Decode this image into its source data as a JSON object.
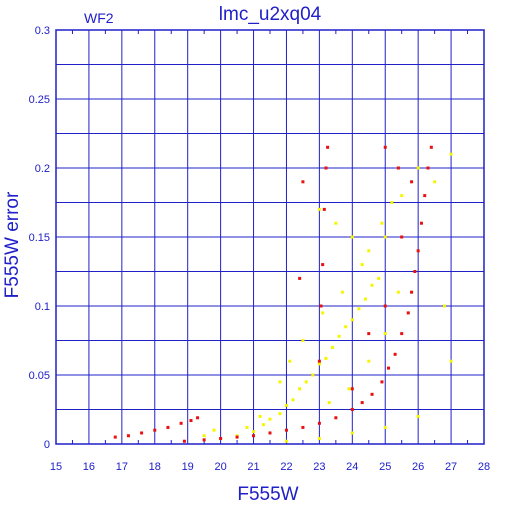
{
  "chart_data": {
    "type": "scatter",
    "title": "lmc_u2xq04",
    "panel_label": "WF2",
    "xlabel": "F555W",
    "ylabel": "F555W error",
    "xlim": [
      15,
      28
    ],
    "ylim": [
      0,
      0.3
    ],
    "x_ticks": [
      "15",
      "16",
      "17",
      "18",
      "19",
      "20",
      "21",
      "22",
      "23",
      "24",
      "25",
      "26",
      "27",
      "28"
    ],
    "y_ticks": [
      "0",
      "0.05",
      "0.1",
      "0.15",
      "0.2",
      "0.25",
      "0.3"
    ],
    "grid": true,
    "colors": {
      "axis": "#2020c8",
      "grid": "#2020c8",
      "series_yellow": "#f5f500",
      "series_red": "#e81010"
    },
    "series": [
      {
        "color": "#f5f500",
        "points": [
          [
            20.0,
            0.004
          ],
          [
            20.5,
            0.006
          ],
          [
            21.0,
            0.009
          ],
          [
            21.3,
            0.014
          ],
          [
            21.5,
            0.018
          ],
          [
            21.8,
            0.022
          ],
          [
            22.0,
            0.028
          ],
          [
            22.2,
            0.032
          ],
          [
            22.4,
            0.04
          ],
          [
            22.6,
            0.045
          ],
          [
            22.8,
            0.05
          ],
          [
            23.0,
            0.058
          ],
          [
            23.2,
            0.062
          ],
          [
            23.4,
            0.07
          ],
          [
            23.6,
            0.078
          ],
          [
            23.8,
            0.085
          ],
          [
            24.0,
            0.09
          ],
          [
            24.2,
            0.098
          ],
          [
            24.4,
            0.105
          ],
          [
            24.6,
            0.115
          ],
          [
            24.8,
            0.12
          ],
          [
            23.0,
            0.17
          ],
          [
            23.5,
            0.16
          ],
          [
            24.0,
            0.15
          ],
          [
            24.5,
            0.14
          ],
          [
            25.0,
            0.15
          ],
          [
            25.5,
            0.18
          ],
          [
            26.0,
            0.2
          ],
          [
            26.5,
            0.19
          ],
          [
            27.0,
            0.21
          ],
          [
            21.8,
            0.045
          ],
          [
            22.5,
            0.075
          ],
          [
            23.1,
            0.095
          ],
          [
            23.7,
            0.11
          ],
          [
            24.3,
            0.13
          ],
          [
            24.9,
            0.16
          ],
          [
            25.2,
            0.175
          ],
          [
            20.8,
            0.012
          ],
          [
            21.2,
            0.02
          ],
          [
            22.1,
            0.06
          ],
          [
            23.3,
            0.03
          ],
          [
            23.9,
            0.04
          ],
          [
            24.5,
            0.06
          ],
          [
            25.0,
            0.08
          ],
          [
            25.4,
            0.11
          ],
          [
            19.5,
            0.006
          ],
          [
            19.8,
            0.01
          ],
          [
            22.0,
            0.002
          ],
          [
            23.0,
            0.004
          ],
          [
            24.0,
            0.008
          ],
          [
            25.0,
            0.012
          ],
          [
            26.0,
            0.02
          ],
          [
            27.0,
            0.06
          ],
          [
            26.8,
            0.1
          ]
        ]
      },
      {
        "color": "#e81010",
        "points": [
          [
            16.8,
            0.005
          ],
          [
            17.2,
            0.006
          ],
          [
            17.6,
            0.008
          ],
          [
            18.0,
            0.01
          ],
          [
            18.4,
            0.012
          ],
          [
            18.8,
            0.015
          ],
          [
            19.1,
            0.017
          ],
          [
            19.3,
            0.019
          ],
          [
            18.9,
            0.002
          ],
          [
            19.5,
            0.003
          ],
          [
            20.0,
            0.004
          ],
          [
            20.5,
            0.005
          ],
          [
            21.0,
            0.006
          ],
          [
            21.5,
            0.008
          ],
          [
            22.0,
            0.01
          ],
          [
            22.5,
            0.012
          ],
          [
            23.0,
            0.015
          ],
          [
            23.5,
            0.019
          ],
          [
            24.0,
            0.025
          ],
          [
            24.3,
            0.03
          ],
          [
            24.6,
            0.036
          ],
          [
            24.9,
            0.045
          ],
          [
            25.1,
            0.055
          ],
          [
            25.3,
            0.065
          ],
          [
            25.5,
            0.08
          ],
          [
            25.7,
            0.095
          ],
          [
            25.8,
            0.11
          ],
          [
            25.9,
            0.125
          ],
          [
            26.0,
            0.14
          ],
          [
            26.1,
            0.16
          ],
          [
            26.2,
            0.18
          ],
          [
            26.3,
            0.2
          ],
          [
            23.0,
            0.06
          ],
          [
            23.05,
            0.1
          ],
          [
            23.1,
            0.13
          ],
          [
            23.15,
            0.17
          ],
          [
            23.2,
            0.2
          ],
          [
            23.25,
            0.215
          ],
          [
            25.0,
            0.215
          ],
          [
            25.4,
            0.2
          ],
          [
            25.8,
            0.19
          ],
          [
            26.4,
            0.215
          ],
          [
            22.4,
            0.12
          ],
          [
            22.5,
            0.19
          ],
          [
            24.0,
            0.04
          ],
          [
            24.5,
            0.08
          ],
          [
            25.0,
            0.1
          ],
          [
            25.5,
            0.15
          ]
        ]
      }
    ]
  }
}
